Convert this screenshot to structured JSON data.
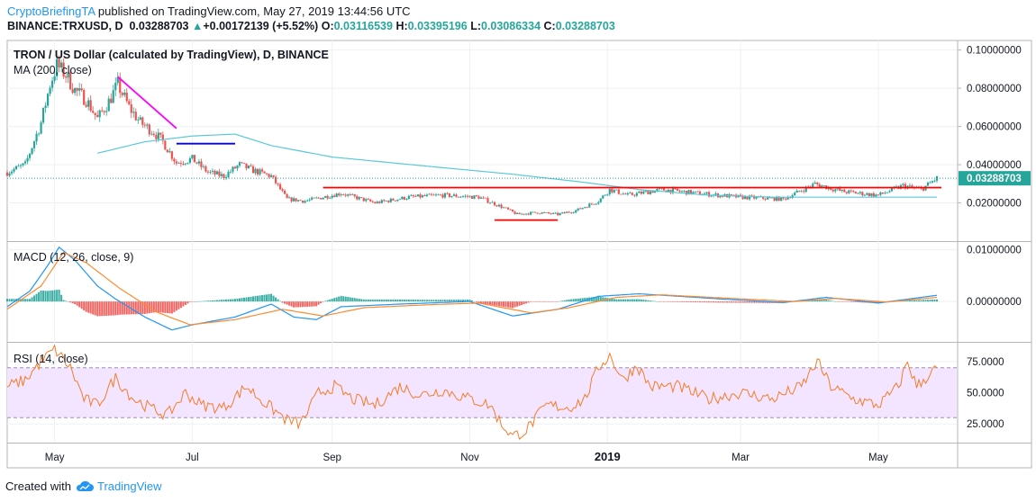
{
  "header": {
    "author": "CryptoBriefingTA",
    "published_text": "published on TradingView.com, May 27, 2019 13:44:56 UTC",
    "symbol": "BINANCE:TRXUSD, D",
    "last": "0.03288703",
    "change_arrow": "▲",
    "change": "+0.00172139 (+5.52%)",
    "o_label": "O:",
    "o": "0.03116539",
    "h_label": "H:",
    "h": "0.03395196",
    "l_label": "L:",
    "l": "0.03086334",
    "c_label": "C:",
    "c": "0.03288703"
  },
  "footer": {
    "created_with": "Created with",
    "brand": "TradingView",
    "logo": "tradingview-cloud-icon"
  },
  "colors": {
    "up": "#26a69a",
    "down": "#ef5350",
    "ma": "#5ac8d8",
    "macd": "#2196f3",
    "signal": "#ff8a30",
    "rsi": "#f57c2a",
    "rsi_band": "#f3e5ff",
    "trend_magenta": "#ff00ff",
    "trend_blue": "#0000ff",
    "trend_red": "#ff0000",
    "price_tag": "#26a69a"
  },
  "chart_data": [
    {
      "type": "candlestick",
      "title": "TRON / US Dollar (calculated by TradingView), D, BINANCE",
      "indicator": "MA (200, close)",
      "ylim": [
        0.0,
        0.105
      ],
      "y_ticks": [
        "0.10000000",
        "0.08000000",
        "0.06000000",
        "0.04000000",
        "0.02000000"
      ],
      "last_price_tag": "0.03288703",
      "x_ticks": [
        "May",
        "Jul",
        "Sep",
        "Nov",
        "2019",
        "Mar",
        "May"
      ],
      "date_range": [
        "2018-04-10",
        "2019-05-27"
      ],
      "close_keypoints": [
        [
          "2018-04-10",
          0.036
        ],
        [
          "2018-04-18",
          0.04
        ],
        [
          "2018-04-25",
          0.062
        ],
        [
          "2018-04-29",
          0.082
        ],
        [
          "2018-05-02",
          0.092
        ],
        [
          "2018-05-06",
          0.087
        ],
        [
          "2018-05-10",
          0.079
        ],
        [
          "2018-05-15",
          0.074
        ],
        [
          "2018-05-20",
          0.064
        ],
        [
          "2018-05-25",
          0.073
        ],
        [
          "2018-05-29",
          0.082
        ],
        [
          "2018-06-03",
          0.07
        ],
        [
          "2018-06-08",
          0.062
        ],
        [
          "2018-06-14",
          0.057
        ],
        [
          "2018-06-18",
          0.052
        ],
        [
          "2018-06-24",
          0.041
        ],
        [
          "2018-07-01",
          0.043
        ],
        [
          "2018-07-08",
          0.036
        ],
        [
          "2018-07-15",
          0.034
        ],
        [
          "2018-07-22",
          0.04
        ],
        [
          "2018-07-28",
          0.037
        ],
        [
          "2018-08-05",
          0.034
        ],
        [
          "2018-08-12",
          0.022
        ],
        [
          "2018-08-20",
          0.021
        ],
        [
          "2018-08-28",
          0.023
        ],
        [
          "2018-09-05",
          0.025
        ],
        [
          "2018-09-20",
          0.02
        ],
        [
          "2018-10-05",
          0.023
        ],
        [
          "2018-10-20",
          0.024
        ],
        [
          "2018-11-05",
          0.023
        ],
        [
          "2018-11-15",
          0.018
        ],
        [
          "2018-11-22",
          0.014
        ],
        [
          "2018-12-01",
          0.015
        ],
        [
          "2018-12-10",
          0.014
        ],
        [
          "2018-12-18",
          0.016
        ],
        [
          "2018-12-28",
          0.021
        ],
        [
          "2019-01-02",
          0.027
        ],
        [
          "2019-01-10",
          0.024
        ],
        [
          "2019-01-25",
          0.027
        ],
        [
          "2019-02-10",
          0.025
        ],
        [
          "2019-03-01",
          0.023
        ],
        [
          "2019-03-20",
          0.022
        ],
        [
          "2019-04-03",
          0.03
        ],
        [
          "2019-04-15",
          0.026
        ],
        [
          "2019-05-01",
          0.024
        ],
        [
          "2019-05-12",
          0.029
        ],
        [
          "2019-05-20",
          0.027
        ],
        [
          "2019-05-27",
          0.0329
        ]
      ],
      "ma200_keypoints": [
        [
          "2018-05-20",
          0.046
        ],
        [
          "2018-06-10",
          0.052
        ],
        [
          "2018-07-01",
          0.055
        ],
        [
          "2018-07-20",
          0.056
        ],
        [
          "2018-08-05",
          0.05
        ],
        [
          "2018-09-01",
          0.044
        ],
        [
          "2018-10-15",
          0.039
        ],
        [
          "2018-11-20",
          0.035
        ],
        [
          "2018-12-20",
          0.031
        ],
        [
          "2019-01-15",
          0.027
        ],
        [
          "2019-02-15",
          0.024
        ],
        [
          "2019-03-15",
          0.023
        ],
        [
          "2019-05-27",
          0.023
        ]
      ],
      "drawings": [
        {
          "color": "#ff00ff",
          "from": [
            "2018-05-29",
            0.086
          ],
          "to": [
            "2018-06-24",
            0.059
          ]
        },
        {
          "color": "#0000ff",
          "from": [
            "2018-06-24",
            0.051
          ],
          "to": [
            "2018-07-20",
            0.051
          ]
        },
        {
          "color": "#ff0000",
          "from": [
            "2018-08-28",
            0.028
          ],
          "to": [
            "2019-05-29",
            0.028
          ]
        },
        {
          "color": "#ff0000",
          "from": [
            "2018-11-12",
            0.011
          ],
          "to": [
            "2018-12-10",
            0.011
          ]
        }
      ]
    },
    {
      "type": "macd",
      "title": "MACD (12, 26, close, 9)",
      "ylim": [
        -0.0078,
        0.0115
      ],
      "y_ticks": [
        "0.01000000",
        "0.00000000"
      ],
      "macd_keypoints": [
        [
          "2018-04-10",
          -0.001
        ],
        [
          "2018-04-20",
          0.002
        ],
        [
          "2018-04-28",
          0.007
        ],
        [
          "2018-05-03",
          0.0105
        ],
        [
          "2018-05-10",
          0.008
        ],
        [
          "2018-05-20",
          0.003
        ],
        [
          "2018-05-28",
          0.0005
        ],
        [
          "2018-06-10",
          -0.003
        ],
        [
          "2018-06-22",
          -0.0055
        ],
        [
          "2018-07-01",
          -0.0045
        ],
        [
          "2018-07-20",
          -0.003
        ],
        [
          "2018-08-05",
          -0.0005
        ],
        [
          "2018-08-15",
          -0.003
        ],
        [
          "2018-08-25",
          -0.0035
        ],
        [
          "2018-09-05",
          -0.001
        ],
        [
          "2018-10-01",
          -0.0005
        ],
        [
          "2018-11-01",
          0.0
        ],
        [
          "2018-11-20",
          -0.0028
        ],
        [
          "2018-12-10",
          -0.0015
        ],
        [
          "2018-12-28",
          0.001
        ],
        [
          "2019-01-15",
          0.0015
        ],
        [
          "2019-02-20",
          0.0005
        ],
        [
          "2019-03-20",
          -0.0002
        ],
        [
          "2019-04-08",
          0.0008
        ],
        [
          "2019-05-01",
          -0.0003
        ],
        [
          "2019-05-27",
          0.0012
        ]
      ],
      "signal_keypoints": [
        [
          "2018-04-10",
          -0.0015
        ],
        [
          "2018-04-25",
          0.003
        ],
        [
          "2018-05-05",
          0.0095
        ],
        [
          "2018-05-15",
          0.0075
        ],
        [
          "2018-05-30",
          0.0025
        ],
        [
          "2018-06-15",
          -0.002
        ],
        [
          "2018-06-30",
          -0.0045
        ],
        [
          "2018-07-20",
          -0.0035
        ],
        [
          "2018-08-10",
          -0.0015
        ],
        [
          "2018-08-28",
          -0.0028
        ],
        [
          "2018-09-15",
          -0.0012
        ],
        [
          "2018-10-15",
          -0.0006
        ],
        [
          "2018-11-05",
          -0.0003
        ],
        [
          "2018-11-28",
          -0.0022
        ],
        [
          "2018-12-15",
          -0.0012
        ],
        [
          "2019-01-05",
          0.0008
        ],
        [
          "2019-01-25",
          0.0013
        ],
        [
          "2019-02-25",
          0.0006
        ],
        [
          "2019-03-25",
          0.0
        ],
        [
          "2019-04-12",
          0.0006
        ],
        [
          "2019-05-05",
          -0.0001
        ],
        [
          "2019-05-27",
          0.0008
        ]
      ]
    },
    {
      "type": "line",
      "title": "RSI (14, close)",
      "ylim": [
        10,
        90
      ],
      "y_ticks": [
        "75.0000",
        "50.0000",
        "25.0000"
      ],
      "band": [
        30,
        70
      ],
      "rsi_keypoints": [
        [
          "2018-04-10",
          55
        ],
        [
          "2018-04-18",
          60
        ],
        [
          "2018-04-25",
          75
        ],
        [
          "2018-05-01",
          85
        ],
        [
          "2018-05-08",
          70
        ],
        [
          "2018-05-14",
          45
        ],
        [
          "2018-05-20",
          40
        ],
        [
          "2018-05-28",
          62
        ],
        [
          "2018-06-05",
          45
        ],
        [
          "2018-06-12",
          38
        ],
        [
          "2018-06-20",
          32
        ],
        [
          "2018-06-28",
          50
        ],
        [
          "2018-07-05",
          40
        ],
        [
          "2018-07-15",
          38
        ],
        [
          "2018-07-25",
          55
        ],
        [
          "2018-08-02",
          42
        ],
        [
          "2018-08-12",
          28
        ],
        [
          "2018-08-18",
          25
        ],
        [
          "2018-08-26",
          50
        ],
        [
          "2018-09-02",
          55
        ],
        [
          "2018-09-10",
          45
        ],
        [
          "2018-09-20",
          40
        ],
        [
          "2018-10-01",
          55
        ],
        [
          "2018-10-10",
          48
        ],
        [
          "2018-10-20",
          52
        ],
        [
          "2018-11-01",
          45
        ],
        [
          "2018-11-10",
          40
        ],
        [
          "2018-11-15",
          25
        ],
        [
          "2018-11-20",
          15
        ],
        [
          "2018-11-26",
          20
        ],
        [
          "2018-12-05",
          40
        ],
        [
          "2018-12-15",
          38
        ],
        [
          "2018-12-22",
          45
        ],
        [
          "2018-12-28",
          70
        ],
        [
          "2019-01-02",
          80
        ],
        [
          "2019-01-08",
          60
        ],
        [
          "2019-01-14",
          72
        ],
        [
          "2019-01-20",
          55
        ],
        [
          "2019-02-01",
          55
        ],
        [
          "2019-02-15",
          45
        ],
        [
          "2019-03-01",
          50
        ],
        [
          "2019-03-15",
          45
        ],
        [
          "2019-03-28",
          55
        ],
        [
          "2019-04-04",
          75
        ],
        [
          "2019-04-10",
          55
        ],
        [
          "2019-04-20",
          45
        ],
        [
          "2019-05-01",
          40
        ],
        [
          "2019-05-10",
          55
        ],
        [
          "2019-05-14",
          75
        ],
        [
          "2019-05-18",
          55
        ],
        [
          "2019-05-27",
          70
        ]
      ]
    }
  ]
}
